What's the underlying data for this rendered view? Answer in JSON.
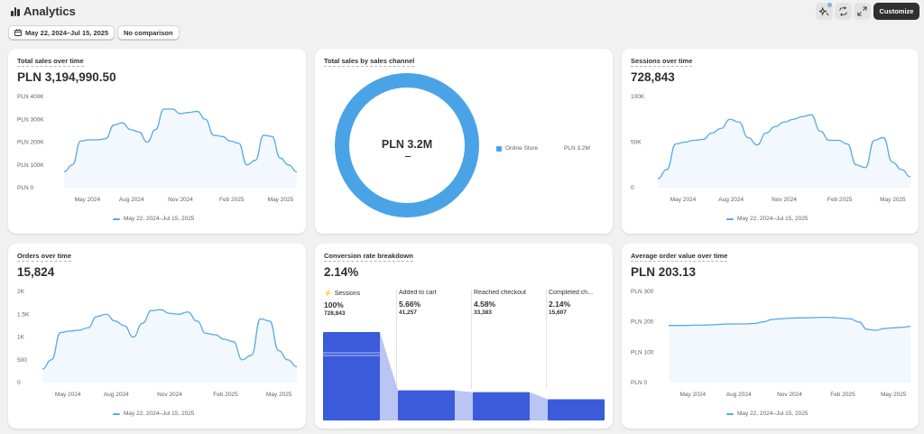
{
  "header": {
    "title": "Analytics",
    "customize_label": "Customize"
  },
  "filters": {
    "date_range": "May 22, 2024–Jul 15, 2025",
    "comparison": "No comparison"
  },
  "colors": {
    "accent": "#5aa9e6",
    "funnel": "#3b5bdb",
    "donut": "#4aa3e6"
  },
  "cards": {
    "total_sales": {
      "title": "Total sales over time",
      "value": "PLN 3,194,990.50",
      "legend": "May 22, 2024–Jul 15, 2025"
    },
    "sales_by_channel": {
      "title": "Total sales by sales channel",
      "center_value": "PLN 3.2M",
      "center_sub": "—",
      "legend_name": "Online Store",
      "legend_value": "PLN 3.2M"
    },
    "sessions": {
      "title": "Sessions over time",
      "value": "728,843",
      "legend": "May 22, 2024–Jul 15, 2025"
    },
    "orders": {
      "title": "Orders over time",
      "value": "15,824",
      "legend": "May 22, 2024–Jul 15, 2025"
    },
    "conversion": {
      "title": "Conversion rate breakdown",
      "value": "2.14%",
      "steps": [
        {
          "label": "Sessions",
          "percent": "100%",
          "count": "728,843",
          "level": 1.0
        },
        {
          "label": "Added to cart",
          "percent": "5.66%",
          "count": "41,257",
          "level": 0.34
        },
        {
          "label": "Reached checkout",
          "percent": "4.58%",
          "count": "33,383",
          "level": 0.32
        },
        {
          "label": "Completed ch...",
          "percent": "2.14%",
          "count": "15,607",
          "level": 0.24
        }
      ]
    },
    "aov": {
      "title": "Average order value over time",
      "value": "PLN 203.13",
      "legend": "May 22, 2024–Jul 15, 2025"
    }
  },
  "chart_data": [
    {
      "id": "total_sales",
      "type": "area",
      "x_ticks": [
        "May 2024",
        "Aug 2024",
        "Nov 2024",
        "Feb 2025",
        "May 2025"
      ],
      "y_ticks": [
        "PLN 0",
        "PLN 100K",
        "PLN 200K",
        "PLN 300K",
        "PLN 400K"
      ],
      "ylim": [
        0,
        400000
      ],
      "series": [
        {
          "name": "May 22, 2024–Jul 15, 2025",
          "values": [
            70000,
            100000,
            205000,
            210000,
            210000,
            215000,
            275000,
            285000,
            255000,
            245000,
            200000,
            255000,
            345000,
            345000,
            325000,
            330000,
            335000,
            300000,
            230000,
            225000,
            205000,
            195000,
            100000,
            120000,
            230000,
            225000,
            130000,
            100000,
            70000
          ]
        }
      ]
    },
    {
      "id": "sessions",
      "type": "area",
      "x_ticks": [
        "May 2024",
        "Aug 2024",
        "Nov 2024",
        "Feb 2025",
        "May 2025"
      ],
      "y_ticks": [
        "0",
        "50K",
        "100K"
      ],
      "ylim": [
        0,
        100000
      ],
      "series": [
        {
          "name": "May 22, 2024–Jul 15, 2025",
          "values": [
            10000,
            20000,
            48000,
            50000,
            52000,
            53000,
            60000,
            65000,
            75000,
            72000,
            55000,
            47000,
            60000,
            67000,
            72000,
            75000,
            78000,
            80000,
            62000,
            52000,
            52000,
            48000,
            25000,
            22000,
            52000,
            55000,
            28000,
            20000,
            12000
          ]
        }
      ]
    },
    {
      "id": "orders",
      "type": "area",
      "x_ticks": [
        "May 2024",
        "Aug 2024",
        "Nov 2024",
        "Feb 2025",
        "May 2025"
      ],
      "y_ticks": [
        "0",
        "500",
        "1K",
        "1.5K",
        "2K"
      ],
      "ylim": [
        0,
        2000
      ],
      "series": [
        {
          "name": "May 22, 2024–Jul 15, 2025",
          "values": [
            300,
            500,
            1100,
            1130,
            1150,
            1200,
            1450,
            1500,
            1350,
            1250,
            1000,
            1300,
            1580,
            1600,
            1520,
            1500,
            1550,
            1350,
            1080,
            1050,
            950,
            900,
            500,
            600,
            1400,
            1350,
            700,
            500,
            350
          ]
        }
      ]
    },
    {
      "id": "aov",
      "type": "area",
      "x_ticks": [
        "May 2024",
        "Aug 2024",
        "Nov 2024",
        "Feb 2025",
        "May 2025"
      ],
      "y_ticks": [
        "PLN 0",
        "PLN 100",
        "PLN 200",
        "PLN 300"
      ],
      "ylim": [
        0,
        300
      ],
      "series": [
        {
          "name": "May 22, 2024–Jul 15, 2025",
          "values": [
            188,
            188,
            188,
            189,
            189,
            190,
            192,
            193,
            193,
            193,
            195,
            200,
            208,
            210,
            212,
            213,
            213,
            214,
            215,
            214,
            212,
            210,
            200,
            175,
            172,
            178,
            180,
            182,
            185
          ]
        }
      ]
    },
    {
      "id": "sales_by_channel",
      "type": "pie",
      "categories": [
        "Online Store"
      ],
      "values": [
        3194990.5
      ]
    },
    {
      "id": "conversion",
      "type": "bar",
      "categories": [
        "Sessions",
        "Added to cart",
        "Reached checkout",
        "Completed ch..."
      ],
      "values": [
        728843,
        41257,
        33383,
        15607
      ]
    }
  ]
}
